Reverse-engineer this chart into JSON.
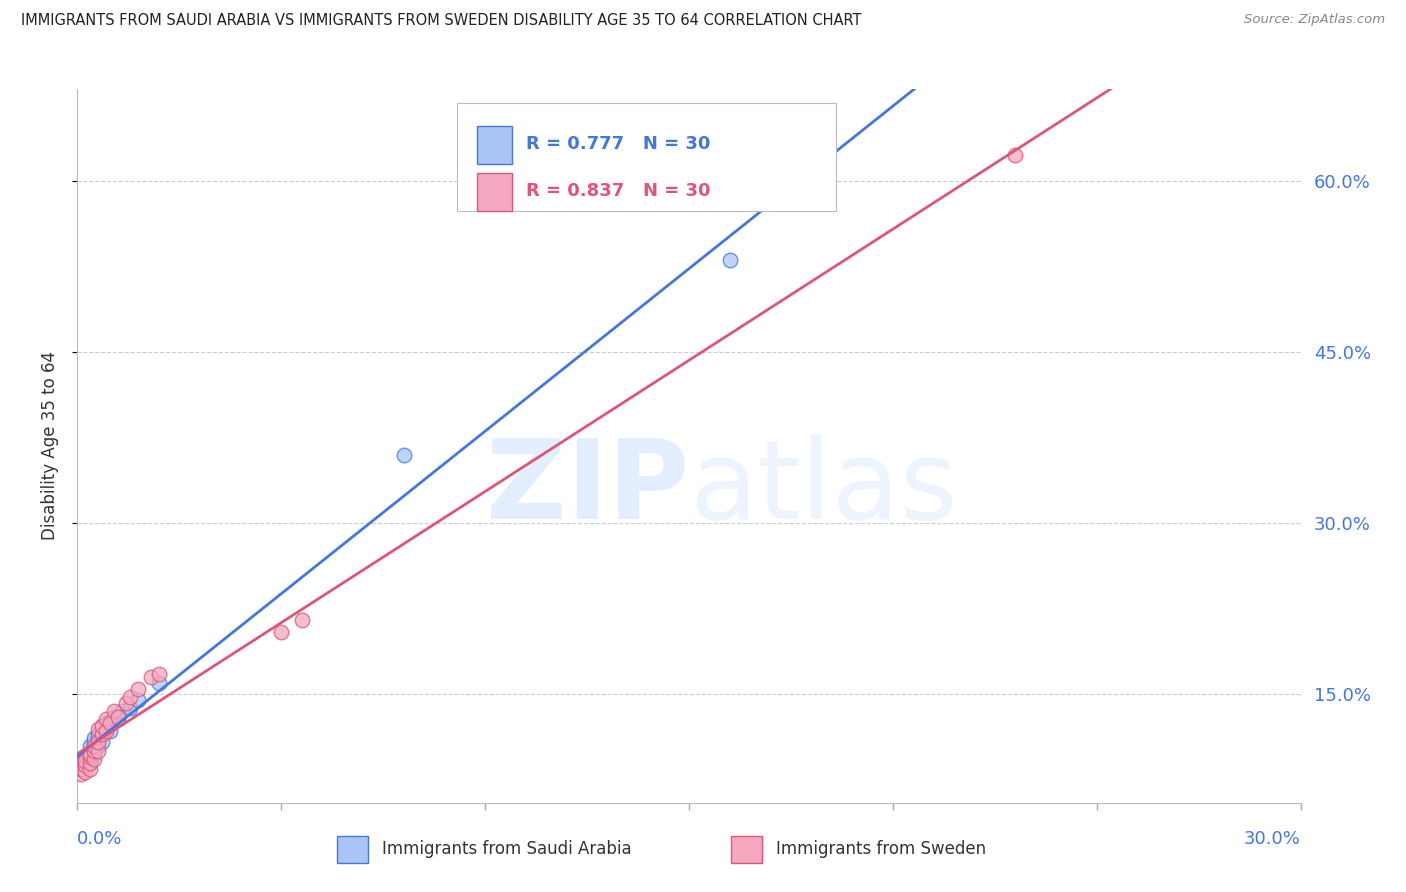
{
  "title": "IMMIGRANTS FROM SAUDI ARABIA VS IMMIGRANTS FROM SWEDEN DISABILITY AGE 35 TO 64 CORRELATION CHART",
  "source": "Source: ZipAtlas.com",
  "ylabel": "Disability Age 35 to 64",
  "ytick_labels": [
    "15.0%",
    "30.0%",
    "45.0%",
    "60.0%"
  ],
  "ytick_values": [
    0.15,
    0.3,
    0.45,
    0.6
  ],
  "xmin": 0.0,
  "xmax": 0.3,
  "ymin": 0.055,
  "ymax": 0.68,
  "blue_label": "Immigrants from Saudi Arabia",
  "pink_label": "Immigrants from Sweden",
  "blue_R": "R = 0.777",
  "blue_N": "N = 30",
  "pink_R": "R = 0.837",
  "pink_N": "N = 30",
  "blue_color": "#aac4f5",
  "pink_color": "#f5a8c0",
  "blue_line_color": "#4477dd",
  "pink_line_color": "#dd5577",
  "watermark": "ZIPatlas",
  "blue_scatter": [
    [
      0.001,
      0.09
    ],
    [
      0.001,
      0.092
    ],
    [
      0.002,
      0.088
    ],
    [
      0.002,
      0.093
    ],
    [
      0.002,
      0.096
    ],
    [
      0.003,
      0.09
    ],
    [
      0.003,
      0.095
    ],
    [
      0.003,
      0.1
    ],
    [
      0.003,
      0.105
    ],
    [
      0.004,
      0.098
    ],
    [
      0.004,
      0.102
    ],
    [
      0.004,
      0.108
    ],
    [
      0.004,
      0.112
    ],
    [
      0.005,
      0.105
    ],
    [
      0.005,
      0.11
    ],
    [
      0.005,
      0.115
    ],
    [
      0.006,
      0.108
    ],
    [
      0.006,
      0.118
    ],
    [
      0.006,
      0.122
    ],
    [
      0.007,
      0.12
    ],
    [
      0.007,
      0.125
    ],
    [
      0.008,
      0.118
    ],
    [
      0.009,
      0.13
    ],
    [
      0.01,
      0.128
    ],
    [
      0.011,
      0.135
    ],
    [
      0.013,
      0.138
    ],
    [
      0.015,
      0.145
    ],
    [
      0.02,
      0.16
    ],
    [
      0.08,
      0.36
    ],
    [
      0.16,
      0.53
    ]
  ],
  "pink_scatter": [
    [
      0.001,
      0.08
    ],
    [
      0.001,
      0.085
    ],
    [
      0.002,
      0.082
    ],
    [
      0.002,
      0.088
    ],
    [
      0.002,
      0.092
    ],
    [
      0.003,
      0.085
    ],
    [
      0.003,
      0.09
    ],
    [
      0.003,
      0.095
    ],
    [
      0.003,
      0.098
    ],
    [
      0.004,
      0.093
    ],
    [
      0.004,
      0.1
    ],
    [
      0.004,
      0.105
    ],
    [
      0.005,
      0.1
    ],
    [
      0.005,
      0.108
    ],
    [
      0.005,
      0.12
    ],
    [
      0.006,
      0.115
    ],
    [
      0.006,
      0.122
    ],
    [
      0.007,
      0.118
    ],
    [
      0.007,
      0.128
    ],
    [
      0.008,
      0.125
    ],
    [
      0.009,
      0.135
    ],
    [
      0.01,
      0.13
    ],
    [
      0.012,
      0.142
    ],
    [
      0.013,
      0.148
    ],
    [
      0.015,
      0.155
    ],
    [
      0.018,
      0.165
    ],
    [
      0.02,
      0.168
    ],
    [
      0.05,
      0.205
    ],
    [
      0.055,
      0.215
    ],
    [
      0.23,
      0.622
    ]
  ]
}
